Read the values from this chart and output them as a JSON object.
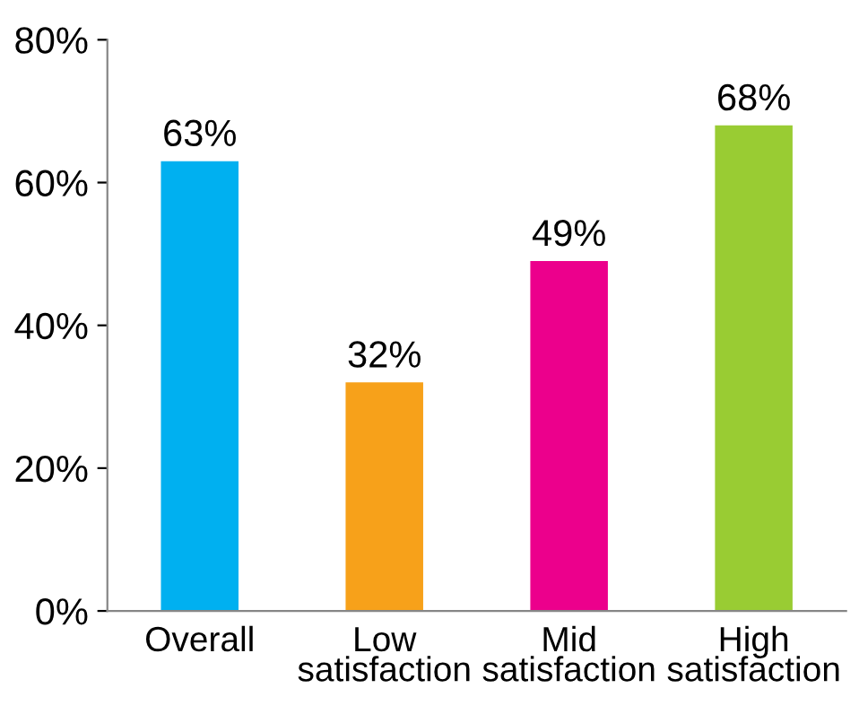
{
  "chart_data": {
    "type": "bar",
    "categories": [
      "Overall",
      "Low\nsatisfaction",
      "Mid\nsatisfaction",
      "High\nsatisfaction"
    ],
    "values": [
      63,
      32,
      49,
      68
    ],
    "colors": [
      "#00b0f0",
      "#f7a11a",
      "#ec008c",
      "#99cc33"
    ],
    "value_labels": [
      "63%",
      "32%",
      "49%",
      "68%"
    ],
    "ylim": [
      0,
      80
    ],
    "yticks": [
      {
        "value": 0,
        "label": "0%"
      },
      {
        "value": 20,
        "label": "20%"
      },
      {
        "value": 40,
        "label": "40%"
      },
      {
        "value": 60,
        "label": "60%"
      },
      {
        "value": 80,
        "label": "80%"
      }
    ],
    "grid": false
  }
}
